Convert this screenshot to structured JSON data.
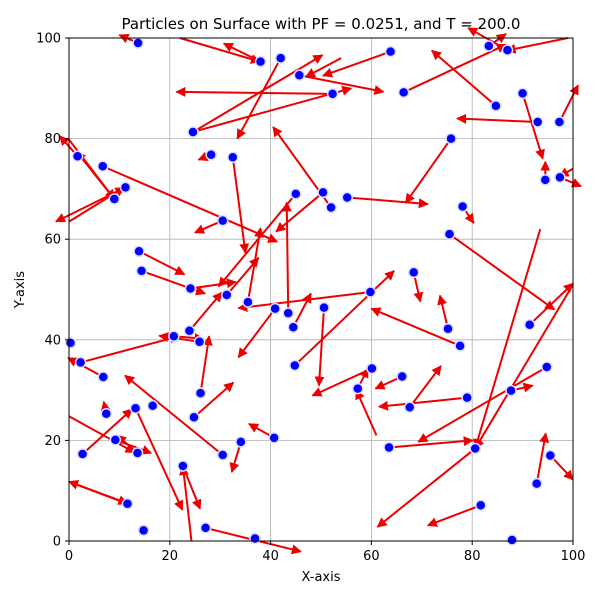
{
  "chart_data": {
    "type": "scatter",
    "title": "Particles on Surface with PF = 0.0251, and T = 200.0",
    "xlabel": "X-axis",
    "ylabel": "Y-axis",
    "xlim": [
      0,
      100
    ],
    "ylim": [
      0,
      100
    ],
    "xticks": [
      "0",
      "20",
      "40",
      "60",
      "80",
      "100"
    ],
    "yticks": [
      "0",
      "20",
      "40",
      "60",
      "80",
      "100"
    ],
    "grid": true,
    "colors": {
      "particle_fill": "#0000ff",
      "particle_edge": "#d8e0ff",
      "arrow": "#ee0000"
    },
    "particles": [
      {
        "x": 13.7,
        "y": 99.0,
        "dx": -3.7,
        "dy": 1.6
      },
      {
        "x": 38.0,
        "y": 95.3,
        "dx": -7.3,
        "dy": 3.6
      },
      {
        "x": 42.0,
        "y": 96.0,
        "dx": -8.6,
        "dy": -16.0
      },
      {
        "x": 45.7,
        "y": 92.6,
        "dx": 16.7,
        "dy": -3.3
      },
      {
        "x": 63.8,
        "y": 97.3,
        "dx": -13.4,
        "dy": -4.8
      },
      {
        "x": 52.3,
        "y": 88.9,
        "dx": -31.0,
        "dy": 0.4
      },
      {
        "x": 66.4,
        "y": 89.2,
        "dx": 20.3,
        "dy": 9.5
      },
      {
        "x": 83.3,
        "y": 98.4,
        "dx": 3.4,
        "dy": 2.4
      },
      {
        "x": 87.0,
        "y": 97.6,
        "dx": -7.8,
        "dy": 4.4
      },
      {
        "x": 84.7,
        "y": 86.5,
        "dx": -12.7,
        "dy": 11.0
      },
      {
        "x": 90.0,
        "y": 89.0,
        "dx": 4.0,
        "dy": -13.0
      },
      {
        "x": 93.0,
        "y": 83.3,
        "dx": -16.0,
        "dy": 0.7
      },
      {
        "x": 97.3,
        "y": 83.3,
        "dx": 3.7,
        "dy": 7.3
      },
      {
        "x": 1.7,
        "y": 76.5,
        "dx": -3.5,
        "dy": 4.0
      },
      {
        "x": 24.6,
        "y": 81.3,
        "dx": 25.7,
        "dy": 15.3
      },
      {
        "x": 6.7,
        "y": 74.5,
        "dx": 34.6,
        "dy": -15.0
      },
      {
        "x": 9.0,
        "y": 68.0,
        "dx": -7.5,
        "dy": 9.4
      },
      {
        "x": 11.2,
        "y": 70.3,
        "dx": -13.8,
        "dy": -6.8
      },
      {
        "x": 28.2,
        "y": 76.8,
        "dx": -2.5,
        "dy": -1.0
      },
      {
        "x": 32.5,
        "y": 76.3,
        "dx": 2.5,
        "dy": -19.0
      },
      {
        "x": 30.5,
        "y": 63.7,
        "dx": -5.5,
        "dy": -2.4
      },
      {
        "x": 45.0,
        "y": 69.0,
        "dx": -15.3,
        "dy": -18.4
      },
      {
        "x": 50.4,
        "y": 69.3,
        "dx": -9.3,
        "dy": -7.8
      },
      {
        "x": 52.0,
        "y": 66.3,
        "dx": -11.5,
        "dy": 16.0
      },
      {
        "x": 55.2,
        "y": 68.3,
        "dx": 16.0,
        "dy": -1.3
      },
      {
        "x": 75.8,
        "y": 80.0,
        "dx": -9.0,
        "dy": -12.8
      },
      {
        "x": 78.1,
        "y": 66.5,
        "dx": 2.2,
        "dy": -3.3
      },
      {
        "x": 94.5,
        "y": 71.8,
        "dx": 0.0,
        "dy": 3.6
      },
      {
        "x": 97.4,
        "y": 72.3,
        "dx": 4.2,
        "dy": -1.8
      },
      {
        "x": 75.5,
        "y": 61.0,
        "dx": 20.8,
        "dy": -15.0
      },
      {
        "x": 13.9,
        "y": 57.6,
        "dx": 9.0,
        "dy": -4.6
      },
      {
        "x": 14.4,
        "y": 53.7,
        "dx": 12.6,
        "dy": -4.5
      },
      {
        "x": 24.1,
        "y": 50.2,
        "dx": 9.0,
        "dy": 1.3
      },
      {
        "x": 31.3,
        "y": 48.9,
        "dx": 6.3,
        "dy": 7.4
      },
      {
        "x": 35.5,
        "y": 47.5,
        "dx": 2.5,
        "dy": 14.7
      },
      {
        "x": 40.9,
        "y": 46.2,
        "dx": -7.3,
        "dy": -9.7
      },
      {
        "x": 43.5,
        "y": 45.3,
        "dx": -0.3,
        "dy": 22.0
      },
      {
        "x": 44.5,
        "y": 42.5,
        "dx": 3.5,
        "dy": 6.7
      },
      {
        "x": 50.6,
        "y": 46.4,
        "dx": -1.0,
        "dy": -15.5
      },
      {
        "x": 59.8,
        "y": 49.5,
        "dx": -26.2,
        "dy": -3.2
      },
      {
        "x": 68.4,
        "y": 53.4,
        "dx": 1.3,
        "dy": -5.8
      },
      {
        "x": 77.6,
        "y": 38.8,
        "dx": -17.6,
        "dy": 7.4
      },
      {
        "x": 75.2,
        "y": 42.2,
        "dx": -1.6,
        "dy": 6.6
      },
      {
        "x": 91.4,
        "y": 43.0,
        "dx": 8.6,
        "dy": 8.2
      },
      {
        "x": 0.3,
        "y": 39.4,
        "dx": 0.0,
        "dy": 0.0
      },
      {
        "x": 2.3,
        "y": 35.5,
        "dx": 19.5,
        "dy": 5.2
      },
      {
        "x": 20.8,
        "y": 40.7,
        "dx": 5.9,
        "dy": -0.5
      },
      {
        "x": 23.9,
        "y": 41.8,
        "dx": 6.4,
        "dy": 7.6
      },
      {
        "x": 25.9,
        "y": 39.6,
        "dx": -8.0,
        "dy": 1.2
      },
      {
        "x": 26.1,
        "y": 29.4,
        "dx": 1.7,
        "dy": 11.3
      },
      {
        "x": 24.8,
        "y": 24.6,
        "dx": 7.8,
        "dy": 6.9
      },
      {
        "x": 44.8,
        "y": 34.9,
        "dx": 19.7,
        "dy": 18.8
      },
      {
        "x": 6.8,
        "y": 32.6,
        "dx": -7.0,
        "dy": 3.8
      },
      {
        "x": 7.4,
        "y": 25.3,
        "dx": -0.5,
        "dy": 2.4
      },
      {
        "x": 13.2,
        "y": 26.4,
        "dx": 9.3,
        "dy": -20.2
      },
      {
        "x": 16.6,
        "y": 26.9,
        "dx": 0.0,
        "dy": 0.0
      },
      {
        "x": 9.2,
        "y": 20.1,
        "dx": 7.1,
        "dy": -2.6
      },
      {
        "x": 2.7,
        "y": 17.3,
        "dx": 9.8,
        "dy": 8.9
      },
      {
        "x": 13.6,
        "y": 17.5,
        "dx": -4.1,
        "dy": 3.5
      },
      {
        "x": 30.5,
        "y": 17.1,
        "dx": -19.4,
        "dy": 15.8
      },
      {
        "x": 34.1,
        "y": 19.7,
        "dx": -1.8,
        "dy": -6.0
      },
      {
        "x": 40.7,
        "y": 20.5,
        "dx": -5.0,
        "dy": 2.8
      },
      {
        "x": 57.3,
        "y": 30.3,
        "dx": 2.0,
        "dy": 4.0
      },
      {
        "x": 60.1,
        "y": 34.3,
        "dx": -11.8,
        "dy": -5.4
      },
      {
        "x": 66.1,
        "y": 32.7,
        "dx": -5.3,
        "dy": -2.4
      },
      {
        "x": 67.6,
        "y": 26.6,
        "dx": 6.2,
        "dy": 8.2
      },
      {
        "x": 79.0,
        "y": 28.5,
        "dx": -17.5,
        "dy": -1.8
      },
      {
        "x": 87.7,
        "y": 29.9,
        "dx": 4.3,
        "dy": 1.0
      },
      {
        "x": 94.8,
        "y": 34.6,
        "dx": -25.5,
        "dy": -14.9
      },
      {
        "x": 63.5,
        "y": 18.6,
        "dx": 16.6,
        "dy": 1.4
      },
      {
        "x": 80.6,
        "y": 18.4,
        "dx": -19.4,
        "dy": -15.6
      },
      {
        "x": 95.5,
        "y": 17.0,
        "dx": 4.5,
        "dy": -4.8
      },
      {
        "x": 92.8,
        "y": 11.4,
        "dx": 1.8,
        "dy": 10.0
      },
      {
        "x": 81.7,
        "y": 7.1,
        "dx": -10.5,
        "dy": -4.0
      },
      {
        "x": 11.6,
        "y": 7.4,
        "dx": -11.6,
        "dy": 4.4
      },
      {
        "x": 14.8,
        "y": 2.1,
        "dx": 1.0,
        "dy": 0.0
      },
      {
        "x": 22.6,
        "y": 14.9,
        "dx": 3.4,
        "dy": -8.5
      },
      {
        "x": 27.1,
        "y": 2.6,
        "dx": 18.9,
        "dy": -4.7
      },
      {
        "x": 36.9,
        "y": 0.5,
        "dx": 1.0,
        "dy": 0.0
      },
      {
        "x": 87.9,
        "y": 0.2,
        "dx": 0.0,
        "dy": 0.0
      }
    ],
    "arrows": [
      {
        "x0": 24.5,
        "y0": 81.3,
        "x1": 56.0,
        "y1": 90.0
      },
      {
        "x0": 54.0,
        "y0": 96.0,
        "x1": 47.0,
        "y1": 92.3
      },
      {
        "x0": 24.3,
        "y0": 0.0,
        "x1": 22.6,
        "y1": 14.9
      },
      {
        "x0": 61.0,
        "y0": 21.0,
        "x1": 57.0,
        "y1": 30.0
      },
      {
        "x0": 0.0,
        "y0": 24.8,
        "x1": 13.0,
        "y1": 17.6
      },
      {
        "x0": 0.0,
        "y0": 11.8,
        "x1": 11.6,
        "y1": 7.5
      },
      {
        "x0": 0.0,
        "y0": 63.5,
        "x1": 11.0,
        "y1": 70.3
      },
      {
        "x0": 0.0,
        "y0": 79.8,
        "x1": 9.0,
        "y1": 68.0
      },
      {
        "x0": 100.0,
        "y0": 51.0,
        "x1": 80.6,
        "y1": 18.4
      },
      {
        "x0": 100.0,
        "y0": 74.0,
        "x1": 97.3,
        "y1": 72.5
      },
      {
        "x0": 93.5,
        "y0": 62.0,
        "x1": 80.6,
        "y1": 18.4
      },
      {
        "x0": 22.0,
        "y0": 100.0,
        "x1": 37.9,
        "y1": 95.3
      },
      {
        "x0": 99.0,
        "y0": 100.0,
        "x1": 86.8,
        "y1": 97.5
      }
    ]
  }
}
